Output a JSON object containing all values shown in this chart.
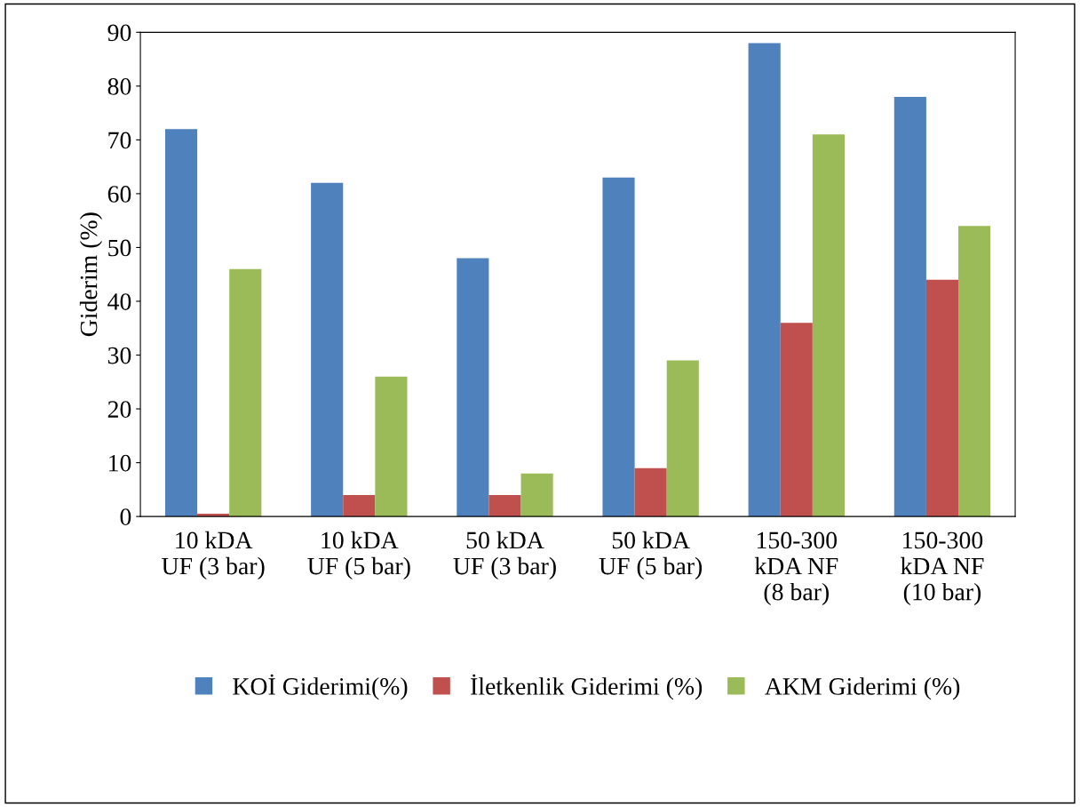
{
  "chart_data": {
    "type": "bar",
    "ylabel": "Giderim (%)",
    "categories": [
      "10 kDA\nUF (3 bar)",
      "10 kDA\nUF (5 bar)",
      "50 kDA\nUF (3 bar)",
      "50 kDA\nUF (5 bar)",
      "150-300\nkDA NF\n(8 bar)",
      "150-300\nkDA NF\n(10 bar)"
    ],
    "series": [
      {
        "name": "KOİ Giderimi(%)",
        "color": "#4f81bd",
        "values": [
          72,
          62,
          48,
          63,
          88,
          78
        ]
      },
      {
        "name": "İletkenlik Giderimi (%)",
        "color": "#c0504d",
        "values": [
          0.5,
          4,
          4,
          9,
          36,
          44
        ]
      },
      {
        "name": "AKM Giderimi (%)",
        "color": "#9bbb59",
        "values": [
          46,
          26,
          8,
          29,
          71,
          54
        ]
      }
    ],
    "ylim": [
      0,
      90
    ],
    "yticks": [
      0,
      10,
      20,
      30,
      40,
      50,
      60,
      70,
      80,
      90
    ],
    "grid": false,
    "legend": "bottom"
  }
}
